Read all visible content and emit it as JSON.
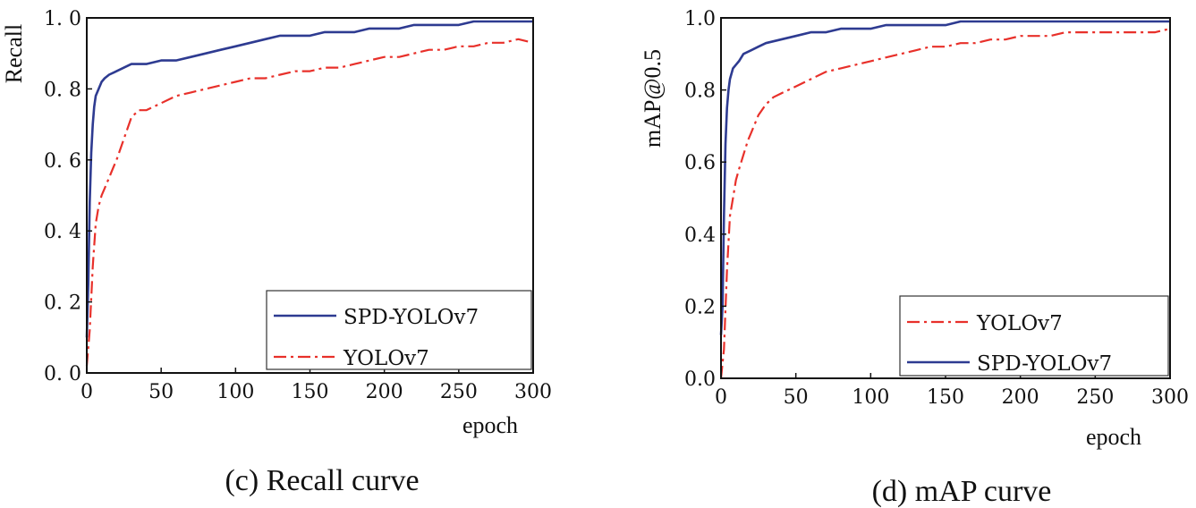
{
  "chart_data": [
    {
      "type": "line",
      "title": "(c) Recall curve",
      "xlabel": "epoch",
      "ylabel": "Recall",
      "xlim": [
        0,
        300
      ],
      "ylim": [
        0,
        1.0
      ],
      "xticks": [
        "0",
        "50",
        "100",
        "150",
        "200",
        "250",
        "300"
      ],
      "yticks": [
        "0. 0",
        "0. 2",
        "0. 4",
        "0. 6",
        "0. 8",
        "1. 0"
      ],
      "legend_position": "bottom-right",
      "series": [
        {
          "name": "SPD-YOLOv7",
          "color": "#2e3b91",
          "style": "solid",
          "x": [
            0,
            1,
            2,
            3,
            4,
            5,
            6,
            8,
            10,
            12,
            15,
            20,
            25,
            30,
            40,
            50,
            60,
            70,
            80,
            90,
            100,
            110,
            120,
            130,
            140,
            150,
            160,
            170,
            180,
            190,
            200,
            210,
            220,
            230,
            240,
            250,
            260,
            270,
            280,
            290,
            300
          ],
          "y": [
            0.1,
            0.25,
            0.48,
            0.62,
            0.7,
            0.75,
            0.78,
            0.8,
            0.82,
            0.83,
            0.84,
            0.85,
            0.86,
            0.87,
            0.87,
            0.88,
            0.88,
            0.89,
            0.9,
            0.91,
            0.92,
            0.93,
            0.94,
            0.95,
            0.95,
            0.95,
            0.96,
            0.96,
            0.96,
            0.97,
            0.97,
            0.97,
            0.98,
            0.98,
            0.98,
            0.98,
            0.99,
            0.99,
            0.99,
            0.99,
            0.99
          ]
        },
        {
          "name": "YOLOv7",
          "color": "#e8302a",
          "style": "dashdot",
          "x": [
            0,
            2,
            4,
            6,
            8,
            10,
            12,
            15,
            18,
            20,
            25,
            30,
            35,
            40,
            50,
            60,
            70,
            80,
            90,
            100,
            110,
            120,
            130,
            140,
            150,
            160,
            170,
            180,
            190,
            200,
            210,
            220,
            230,
            240,
            250,
            260,
            270,
            280,
            290,
            300
          ],
          "y": [
            0.02,
            0.12,
            0.3,
            0.42,
            0.47,
            0.5,
            0.52,
            0.55,
            0.58,
            0.6,
            0.66,
            0.72,
            0.74,
            0.74,
            0.76,
            0.78,
            0.79,
            0.8,
            0.81,
            0.82,
            0.83,
            0.83,
            0.84,
            0.85,
            0.85,
            0.86,
            0.86,
            0.87,
            0.88,
            0.89,
            0.89,
            0.9,
            0.91,
            0.91,
            0.92,
            0.92,
            0.93,
            0.93,
            0.94,
            0.93
          ]
        }
      ]
    },
    {
      "type": "line",
      "title": "(d) mAP curve",
      "xlabel": "epoch",
      "ylabel": "mAP@0.5",
      "xlim": [
        0,
        300
      ],
      "ylim": [
        0,
        1.0
      ],
      "xticks": [
        "0",
        "50",
        "100",
        "150",
        "200",
        "250",
        "300"
      ],
      "yticks": [
        "0.0",
        "0.2",
        "0.4",
        "0.6",
        "0.8",
        "1.0"
      ],
      "legend_position": "bottom-right",
      "series": [
        {
          "name": "YOLOv7",
          "color": "#e8302a",
          "style": "dashdot",
          "x": [
            0,
            2,
            4,
            6,
            8,
            10,
            12,
            15,
            18,
            20,
            25,
            30,
            35,
            40,
            50,
            60,
            70,
            80,
            90,
            100,
            110,
            120,
            130,
            140,
            150,
            160,
            170,
            180,
            190,
            200,
            210,
            220,
            230,
            240,
            250,
            260,
            270,
            280,
            290,
            300
          ],
          "y": [
            0.0,
            0.08,
            0.3,
            0.45,
            0.5,
            0.55,
            0.58,
            0.62,
            0.66,
            0.68,
            0.73,
            0.76,
            0.78,
            0.79,
            0.81,
            0.83,
            0.85,
            0.86,
            0.87,
            0.88,
            0.89,
            0.9,
            0.91,
            0.92,
            0.92,
            0.93,
            0.93,
            0.94,
            0.94,
            0.95,
            0.95,
            0.95,
            0.96,
            0.96,
            0.96,
            0.96,
            0.96,
            0.96,
            0.96,
            0.97
          ]
        },
        {
          "name": "SPD-YOLOv7",
          "color": "#2e3b91",
          "style": "solid",
          "x": [
            0,
            1,
            2,
            3,
            4,
            5,
            6,
            8,
            10,
            12,
            15,
            20,
            25,
            30,
            40,
            50,
            60,
            70,
            80,
            90,
            100,
            110,
            120,
            130,
            140,
            150,
            160,
            170,
            180,
            190,
            200,
            210,
            220,
            230,
            240,
            250,
            260,
            270,
            280,
            290,
            300
          ],
          "y": [
            0.12,
            0.2,
            0.45,
            0.65,
            0.75,
            0.8,
            0.83,
            0.86,
            0.87,
            0.88,
            0.9,
            0.91,
            0.92,
            0.93,
            0.94,
            0.95,
            0.96,
            0.96,
            0.97,
            0.97,
            0.97,
            0.98,
            0.98,
            0.98,
            0.98,
            0.98,
            0.99,
            0.99,
            0.99,
            0.99,
            0.99,
            0.99,
            0.99,
            0.99,
            0.99,
            0.99,
            0.99,
            0.99,
            0.99,
            0.99,
            0.99
          ]
        }
      ]
    }
  ]
}
